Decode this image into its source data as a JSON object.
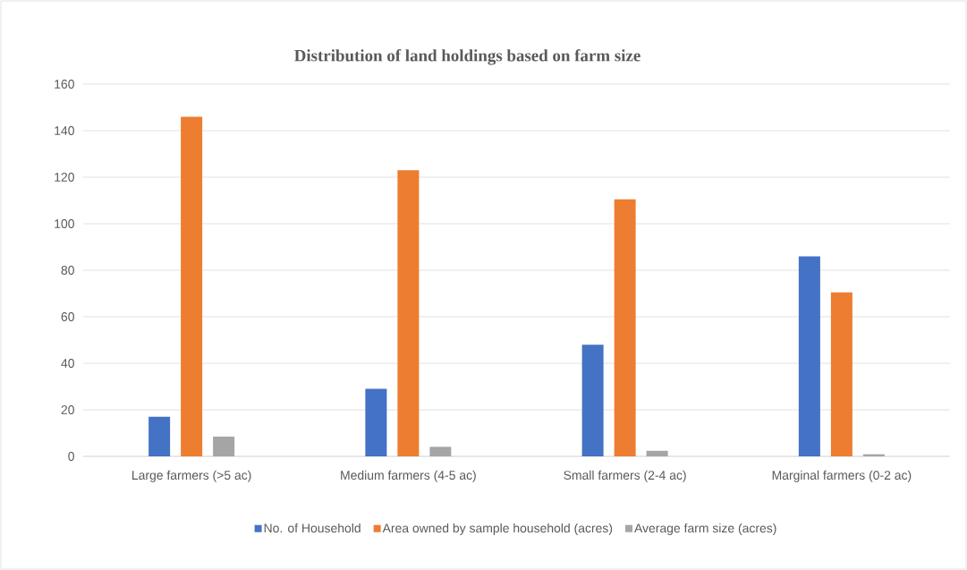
{
  "chart_data": {
    "type": "bar",
    "title": "Distribution of land holdings based on farm size",
    "categories": [
      "Large farmers (>5 ac)",
      "Medium farmers (4-5 ac)",
      "Small farmers (2-4 ac)",
      "Marginal farmers (0-2 ac)"
    ],
    "series": [
      {
        "name": "No. of Household",
        "color": "#4472c4",
        "values": [
          17,
          29,
          48,
          86
        ]
      },
      {
        "name": "Area owned by sample household (acres)",
        "color": "#ed7d31",
        "values": [
          146,
          123,
          110.5,
          70.5
        ]
      },
      {
        "name": "Average farm size (acres)",
        "color": "#a5a5a5",
        "values": [
          8.5,
          4.1,
          2.4,
          0.9
        ]
      }
    ],
    "ylim": [
      0,
      160
    ],
    "yticks": [
      0,
      20,
      40,
      60,
      80,
      100,
      120,
      140,
      160
    ],
    "grid": "y",
    "legend": "bottom"
  }
}
